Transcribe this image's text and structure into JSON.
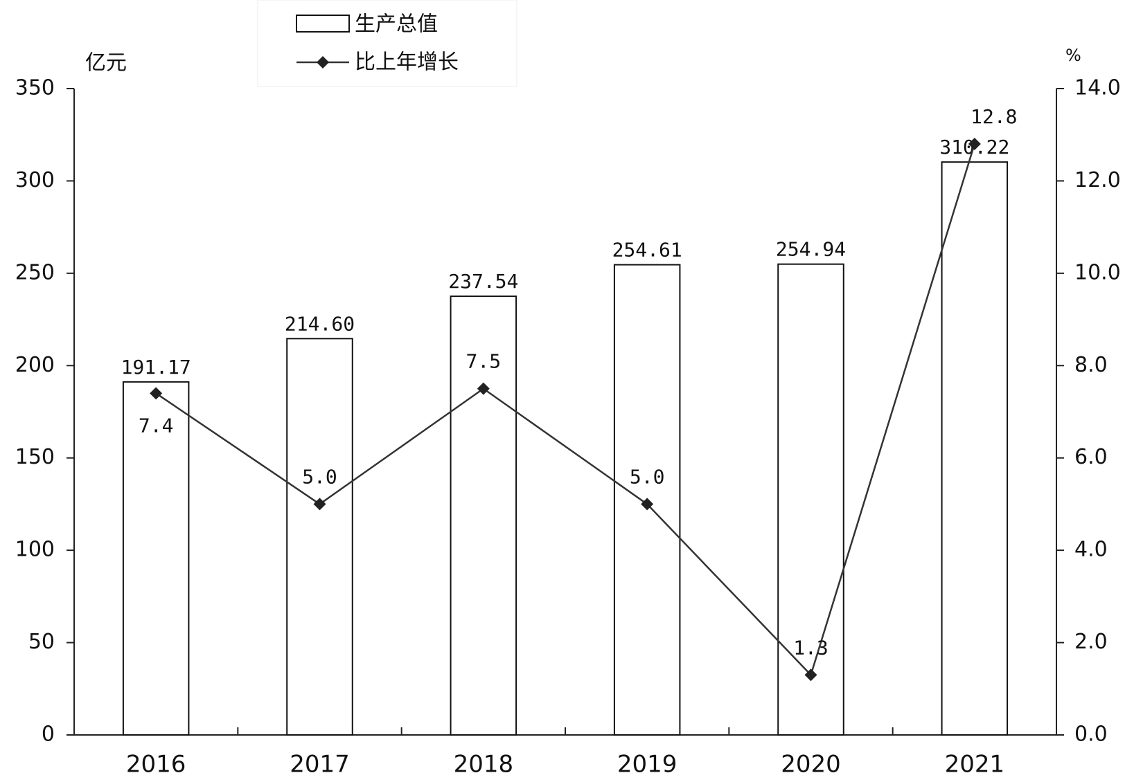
{
  "chart_data": {
    "type": "bar",
    "y_label": "亿元",
    "y2_label": "%",
    "categories": [
      "2016",
      "2017",
      "2018",
      "2019",
      "2020",
      "2021"
    ],
    "series": [
      {
        "name": "生产总值",
        "type": "bar",
        "color": "#ffffff",
        "values": [
          191.17,
          214.6,
          237.54,
          254.61,
          254.94,
          310.22
        ],
        "value_labels": [
          "191.17",
          "214.60",
          "237.54",
          "254.61",
          "254.94",
          "310.22"
        ]
      },
      {
        "name": "比上年增长",
        "type": "line",
        "axis": "y2",
        "color": "#333333",
        "values": [
          7.4,
          5.0,
          7.5,
          5.0,
          1.3,
          12.8
        ],
        "value_labels": [
          "7.4",
          "5.0",
          "7.5",
          "5.0",
          "1.3",
          "12.8"
        ]
      }
    ],
    "ylim": [
      0,
      350
    ],
    "yticks": [
      0,
      50,
      100,
      150,
      200,
      250,
      300,
      350
    ],
    "y2lim": [
      0,
      14
    ],
    "y2ticks": [
      {
        "value": 0,
        "label": "0.0"
      },
      {
        "value": 2,
        "label": "2.0"
      },
      {
        "value": 4,
        "label": "4.0"
      },
      {
        "value": 6,
        "label": "6.0"
      },
      {
        "value": 8,
        "label": "8.0"
      },
      {
        "value": 10,
        "label": "10.0"
      },
      {
        "value": 12,
        "label": "12.0"
      },
      {
        "value": 14,
        "label": "14.0"
      }
    ]
  }
}
